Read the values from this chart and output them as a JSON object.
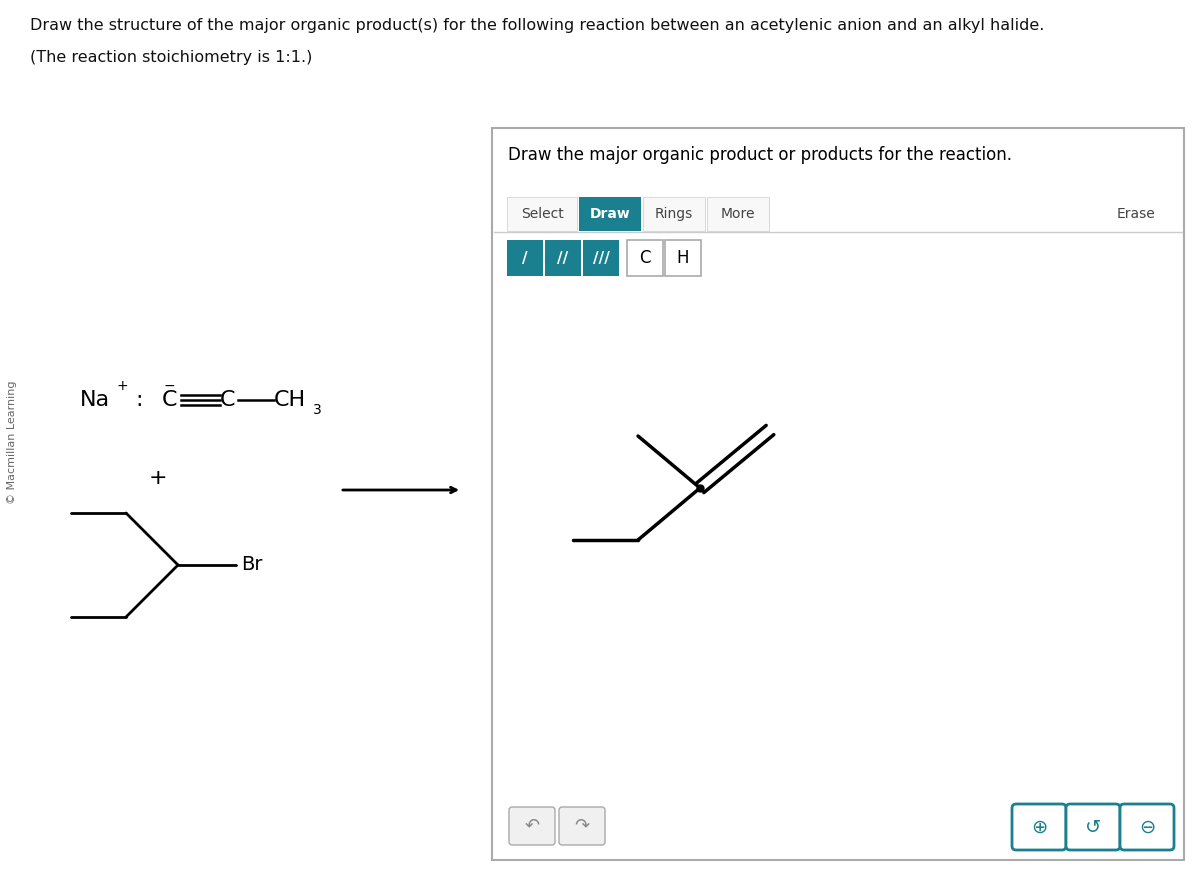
{
  "bg_color": "#ffffff",
  "title_line1": "Draw the structure of the major organic product(s) for the following reaction between an acetylenic anion and an alkyl halide.",
  "title_line2": "(The reaction stoichiometry is 1:1.)",
  "watermark": "© Macmillan Learning",
  "box_title": "Draw the major organic product or products for the reaction.",
  "teal": "#1a7f8e",
  "gray_border": "#aaaaaa",
  "toolbar_items": [
    "Select",
    "Draw",
    "Rings",
    "More",
    "Erase"
  ],
  "active_tab": "Draw",
  "bond_btns": [
    "/",
    "//",
    "///"
  ],
  "atom_btns": [
    "C",
    "H"
  ],
  "undo_redo": [
    "↶",
    "↷"
  ],
  "zoom_btns": [
    "⊕",
    "↺",
    "⊖"
  ]
}
